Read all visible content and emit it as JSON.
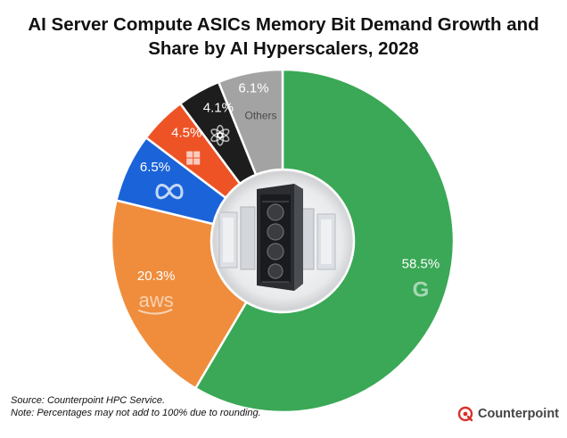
{
  "title": {
    "line1": "AI Server Compute ASICs Memory Bit Demand Growth and",
    "line2": "Share by AI Hyperscalers, 2028"
  },
  "chart_data": {
    "type": "pie",
    "donut": true,
    "start_angle_deg": 0,
    "direction": "clockwise",
    "slices": [
      {
        "label": "G",
        "display": "58.5%",
        "value": 58.5,
        "color": "#3aa856",
        "text_color": "#ffffff",
        "icon": "google-logo-icon"
      },
      {
        "label": "aws",
        "display": "20.3%",
        "value": 20.3,
        "color": "#ef8d3d",
        "text_color": "#ffffff",
        "icon": "aws-logo-icon"
      },
      {
        "label": "",
        "display": "6.5%",
        "value": 6.5,
        "color": "#1b63d8",
        "text_color": "#ffffff",
        "icon": "meta-logo-icon"
      },
      {
        "label": "",
        "display": "4.5%",
        "value": 4.5,
        "color": "#ee5326",
        "text_color": "#ffffff",
        "icon": "microsoft-logo-icon"
      },
      {
        "label": "",
        "display": "4.1%",
        "value": 4.1,
        "color": "#1d1d1d",
        "text_color": "#ffffff",
        "icon": "openai-logo-icon"
      },
      {
        "label": "Others",
        "display": "6.1%",
        "value": 6.1,
        "color": "#a3a3a3",
        "text_color": "#ffffff",
        "icon": ""
      }
    ],
    "center_image": "server-rack-image"
  },
  "footer": {
    "source": "Source: Counterpoint HPC Service.",
    "note": "Note: Percentages may not add to 100% due to rounding."
  },
  "brand": {
    "name": "Counterpoint",
    "color": "#d8312b"
  }
}
